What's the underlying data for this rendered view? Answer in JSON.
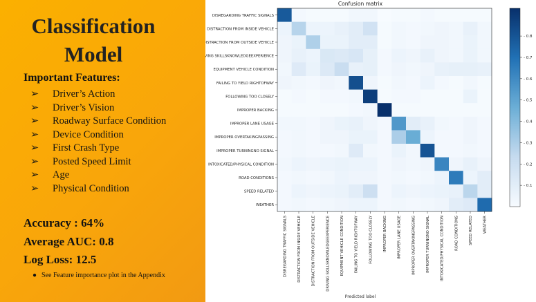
{
  "slide": {
    "title_line1": "Classification",
    "title_line2": "Model",
    "features_heading": "Important Features:",
    "features": [
      "Driver’s Action",
      "Driver’s Vision",
      "Roadway Surface Condition",
      "Device Condition",
      "First Crash Type",
      "Posted Speed Limit",
      "Age",
      "Physical Condition"
    ],
    "accuracy": "Accuracy : 64%",
    "auc": "Average AUC: 0.8",
    "logloss": "Log Loss: 12.5",
    "note": "See Feature importance plot in the Appendix",
    "colors": {
      "panel": "#f9a60a",
      "cmap_low": "#f7fbff",
      "cmap_high": "#08306b"
    }
  },
  "chart_data": {
    "type": "heatmap",
    "title": "Confusion matrix",
    "xlabel": "Predicted label",
    "ylabel": "",
    "row_labels": [
      "DISREGARDING TRAFFIC SIGNALS",
      "DISTRACTION  FROM INSIDE VEHICLE",
      "DISTRACTION  FROM OUTSIDE VEHICLE",
      "DRIVING SKILLSKNOWLEDGEEXPERIENCE",
      "EQUIPMENT  VEHICLE CONDITION",
      "FAILING TO YIELD RIGHTOFWAY",
      "FOLLOWING TOO CLOSELY",
      "IMPROPER BACKING",
      "IMPROPER LANE USAGE",
      "IMPROPER OVERTAKINGPASSING",
      "IMPROPER TURNINGNO SIGNAL",
      "INTOXICATED/PHYSICAL CONDITION",
      "ROAD CONDITIONS",
      "SPEED RELATED",
      "WEATHER"
    ],
    "col_labels": [
      "DISREGARDING TRAFFIC SIGNALS",
      "DISTRACTION  FROM INSIDE VEHICLE",
      "DISTRACTION  FROM OUTSIDE VEHICLE",
      "DRIVING SKILLSKNOWLEDGEEXPERIENCE",
      "EQUIPMENT  VEHICLE CONDITION",
      "FAILING TO YIELD RIGHTOFWAY",
      "FOLLOWING TOO CLOSELY",
      "IMPROPER BACKING",
      "IMPROPER LANE USAGE",
      "IMPROPER OVERTAKINGPASSING",
      "IMPROPER TURNINGNO SIGNAL",
      "INTOXICATED/PHYSICAL CONDITION",
      "ROAD CONDITIONS",
      "SPEED RELATED",
      "WEATHER"
    ],
    "matrix": [
      [
        0.78,
        0.02,
        0.01,
        0.01,
        0.01,
        0.03,
        0.03,
        0.0,
        0.01,
        0.01,
        0.02,
        0.01,
        0.01,
        0.01,
        0.01
      ],
      [
        0.05,
        0.27,
        0.05,
        0.05,
        0.07,
        0.1,
        0.18,
        0.01,
        0.03,
        0.02,
        0.03,
        0.04,
        0.03,
        0.07,
        0.03
      ],
      [
        0.04,
        0.06,
        0.29,
        0.06,
        0.06,
        0.1,
        0.1,
        0.01,
        0.03,
        0.02,
        0.04,
        0.04,
        0.03,
        0.06,
        0.03
      ],
      [
        0.04,
        0.07,
        0.05,
        0.14,
        0.13,
        0.15,
        0.08,
        0.02,
        0.05,
        0.04,
        0.07,
        0.04,
        0.03,
        0.06,
        0.03
      ],
      [
        0.03,
        0.12,
        0.06,
        0.13,
        0.22,
        0.07,
        0.08,
        0.02,
        0.04,
        0.03,
        0.04,
        0.07,
        0.08,
        0.08,
        0.07
      ],
      [
        0.04,
        0.03,
        0.02,
        0.04,
        0.03,
        0.82,
        0.04,
        0.01,
        0.03,
        0.02,
        0.05,
        0.02,
        0.01,
        0.03,
        0.01
      ],
      [
        0.01,
        0.02,
        0.01,
        0.02,
        0.02,
        0.03,
        0.88,
        0.01,
        0.02,
        0.02,
        0.01,
        0.01,
        0.01,
        0.06,
        0.01
      ],
      [
        0.01,
        0.01,
        0.01,
        0.01,
        0.01,
        0.02,
        0.03,
        0.93,
        0.01,
        0.01,
        0.01,
        0.01,
        0.01,
        0.01,
        0.01
      ],
      [
        0.03,
        0.03,
        0.02,
        0.04,
        0.06,
        0.07,
        0.04,
        0.02,
        0.55,
        0.1,
        0.07,
        0.03,
        0.02,
        0.04,
        0.02
      ],
      [
        0.02,
        0.03,
        0.02,
        0.04,
        0.04,
        0.06,
        0.06,
        0.02,
        0.3,
        0.47,
        0.05,
        0.02,
        0.02,
        0.04,
        0.02
      ],
      [
        0.02,
        0.03,
        0.02,
        0.02,
        0.03,
        0.12,
        0.03,
        0.02,
        0.06,
        0.03,
        0.8,
        0.02,
        0.02,
        0.03,
        0.02
      ],
      [
        0.03,
        0.05,
        0.04,
        0.05,
        0.06,
        0.05,
        0.05,
        0.02,
        0.04,
        0.03,
        0.04,
        0.62,
        0.04,
        0.07,
        0.04
      ],
      [
        0.02,
        0.03,
        0.02,
        0.03,
        0.05,
        0.04,
        0.04,
        0.02,
        0.03,
        0.02,
        0.03,
        0.05,
        0.66,
        0.05,
        0.1
      ],
      [
        0.02,
        0.05,
        0.04,
        0.05,
        0.06,
        0.1,
        0.2,
        0.02,
        0.05,
        0.04,
        0.05,
        0.06,
        0.07,
        0.26,
        0.1
      ],
      [
        0.02,
        0.03,
        0.02,
        0.03,
        0.04,
        0.05,
        0.05,
        0.02,
        0.03,
        0.02,
        0.03,
        0.04,
        0.1,
        0.12,
        0.72
      ]
    ],
    "colorbar": {
      "ticks": [
        0.1,
        0.2,
        0.3,
        0.4,
        0.5,
        0.6,
        0.7,
        0.8
      ],
      "range": [
        0.0,
        0.93
      ]
    },
    "colormap": "Blues"
  }
}
